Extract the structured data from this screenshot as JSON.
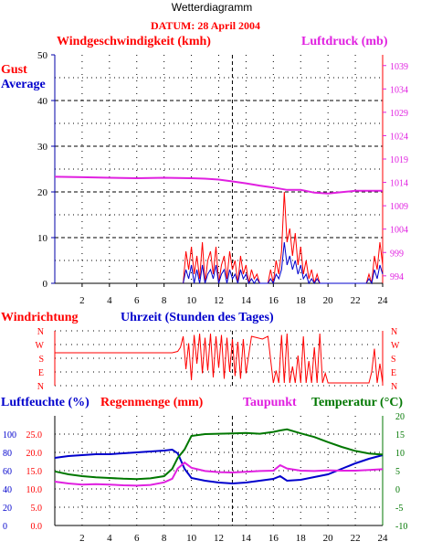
{
  "window_title": "Wetterdiagramm",
  "date_label": "DATUM: 28 April 2004",
  "colors": {
    "red": "#ff0000",
    "blue": "#0000cc",
    "magenta": "#e020e0",
    "green": "#007700",
    "frame": "#0000aa",
    "black": "#000000"
  },
  "chart_data": [
    {
      "type": "line",
      "title": "",
      "left_title": "Windgeschwindigkeit (kmh)",
      "right_title": "Luftdruck (mb)",
      "xlabel": "",
      "x_ticks": [
        2,
        4,
        6,
        8,
        10,
        12,
        14,
        16,
        18,
        20,
        22,
        24
      ],
      "xlim": [
        0,
        24
      ],
      "ylim": [
        0,
        50
      ],
      "y_ticks": [
        0,
        10,
        20,
        30,
        40,
        50
      ],
      "y2lim": [
        992.4,
        1041.3
      ],
      "y2_ticks": [
        994,
        999,
        1004,
        1009,
        1014,
        1019,
        1024,
        1029,
        1034,
        1039
      ],
      "grid": true,
      "series": [
        {
          "name": "Gust",
          "color": "#ff0000",
          "axis": "left",
          "x": [
            9.4,
            9.6,
            9.8,
            10.0,
            10.2,
            10.4,
            10.6,
            10.8,
            11.0,
            11.2,
            11.4,
            11.6,
            11.8,
            12.0,
            12.2,
            12.4,
            12.6,
            12.8,
            13.0,
            13.2,
            13.4,
            13.6,
            13.8,
            14.0,
            14.2,
            14.4,
            14.6,
            14.8,
            15.0,
            15.2,
            15.4,
            15.6,
            15.8,
            16.0,
            16.2,
            16.4,
            16.6,
            16.8,
            17.0,
            17.2,
            17.4,
            17.6,
            17.8,
            18.0,
            18.2,
            18.4,
            18.6,
            18.8,
            19.0,
            19.2,
            19.4,
            19.6,
            19.8,
            20.0,
            20.2,
            20.4,
            20.6,
            20.8,
            21.0,
            21.2,
            21.4,
            21.6,
            21.8,
            22.0,
            22.2,
            22.4,
            22.6,
            22.8,
            23.0,
            23.2,
            23.4,
            23.6,
            23.8,
            24.0
          ],
          "y": [
            0,
            7,
            3,
            8,
            2,
            6,
            1,
            9,
            0,
            5,
            7,
            2,
            8,
            0,
            4,
            6,
            1,
            7,
            3,
            5,
            0,
            6,
            2,
            4,
            0,
            3,
            1,
            2,
            0,
            0,
            0,
            0,
            3,
            0,
            5,
            2,
            7,
            20,
            9,
            12,
            6,
            11,
            4,
            8,
            2,
            5,
            1,
            3,
            0,
            2,
            0,
            0,
            0,
            0,
            0,
            0,
            0,
            0,
            0,
            0,
            0,
            0,
            0,
            0,
            0,
            0,
            0,
            0,
            2,
            0,
            6,
            3,
            9,
            4
          ]
        },
        {
          "name": "Average",
          "color": "#0000cc",
          "axis": "left",
          "x": [
            9.4,
            9.6,
            9.8,
            10.0,
            10.2,
            10.4,
            10.6,
            10.8,
            11.0,
            11.2,
            11.4,
            11.6,
            11.8,
            12.0,
            12.2,
            12.4,
            12.6,
            12.8,
            13.0,
            13.2,
            13.4,
            13.6,
            13.8,
            14.0,
            14.2,
            14.4,
            14.6,
            14.8,
            15.0,
            15.2,
            15.4,
            15.6,
            15.8,
            16.0,
            16.2,
            16.4,
            16.6,
            16.8,
            17.0,
            17.2,
            17.4,
            17.6,
            17.8,
            18.0,
            18.2,
            18.4,
            18.6,
            18.8,
            19.0,
            19.2,
            19.4,
            19.6,
            19.8,
            20.0,
            20.2,
            20.4,
            20.6,
            20.8,
            21.0,
            21.2,
            21.4,
            21.6,
            21.8,
            22.0,
            22.2,
            22.4,
            22.6,
            22.8,
            23.0,
            23.2,
            23.4,
            23.6,
            23.8,
            24.0
          ],
          "y": [
            0,
            3,
            1,
            4,
            0,
            3,
            0,
            4,
            0,
            2,
            3,
            1,
            4,
            0,
            2,
            3,
            0,
            3,
            1,
            2,
            0,
            3,
            1,
            2,
            0,
            1,
            0,
            1,
            0,
            0,
            0,
            0,
            1,
            0,
            2,
            1,
            3,
            9,
            4,
            6,
            3,
            5,
            2,
            4,
            1,
            2,
            0,
            1,
            0,
            1,
            0,
            0,
            0,
            0,
            0,
            0,
            0,
            0,
            0,
            0,
            0,
            0,
            0,
            0,
            0,
            0,
            0,
            0,
            1,
            0,
            3,
            1,
            4,
            2
          ]
        },
        {
          "name": "Luftdruck",
          "color": "#e020e0",
          "axis": "right",
          "x": [
            0,
            2,
            4,
            6,
            8,
            10,
            11,
            12,
            13,
            14,
            15,
            16,
            17,
            18,
            19,
            20,
            21,
            22,
            23,
            24
          ],
          "y": [
            1015.2,
            1015.1,
            1015.0,
            1014.9,
            1015.0,
            1014.9,
            1014.8,
            1014.6,
            1014.2,
            1013.8,
            1013.3,
            1012.9,
            1012.4,
            1012.4,
            1011.8,
            1011.6,
            1011.9,
            1012.2,
            1012.2,
            1012.2
          ]
        }
      ],
      "legend": [
        "Gust",
        "Average"
      ]
    },
    {
      "type": "line",
      "title": "Uhrzeit (Stunden des Tages)",
      "left_title": "Windrichtung",
      "categories": [
        "N",
        "W",
        "S",
        "E",
        "N"
      ],
      "xlim": [
        0,
        24
      ],
      "grid": true,
      "series": [
        {
          "name": "Windrichtung",
          "color": "#ff0000",
          "x": [
            0,
            2,
            4,
            6,
            8,
            8.6,
            9.0,
            9.2,
            9.4,
            9.6,
            9.8,
            10.0,
            10.2,
            10.4,
            10.6,
            10.8,
            11.0,
            11.2,
            11.4,
            11.6,
            11.8,
            12.0,
            12.2,
            12.4,
            12.6,
            12.8,
            13.0,
            13.2,
            13.4,
            13.6,
            13.8,
            14.0,
            14.4,
            14.8,
            15.2,
            15.6,
            16.0,
            16.2,
            16.4,
            16.6,
            16.8,
            17.0,
            17.2,
            17.4,
            17.6,
            17.8,
            18.0,
            18.2,
            18.4,
            18.6,
            18.8,
            19.0,
            19.2,
            19.4,
            19.6,
            19.8,
            20.0,
            20.5,
            21.0,
            21.5,
            22.0,
            22.5,
            23.0,
            23.2,
            23.4,
            23.6,
            23.8,
            24.0
          ],
          "y": [
            1.6,
            1.6,
            1.6,
            1.6,
            1.6,
            1.6,
            1.5,
            1.2,
            0.4,
            2.8,
            0.9,
            3.6,
            0.3,
            2.4,
            0.2,
            3.1,
            0.5,
            2.9,
            0.2,
            3.4,
            0.4,
            2.7,
            0.3,
            3.5,
            0.5,
            3.0,
            0.6,
            3.3,
            0.8,
            3.5,
            0.6,
            3.1,
            0.4,
            0.5,
            0.6,
            0.4,
            3.8,
            2.9,
            3.8,
            0.3,
            3.8,
            0.2,
            3.8,
            2.6,
            3.8,
            1.8,
            3.8,
            0.4,
            3.8,
            2.2,
            3.8,
            1.2,
            3.8,
            0.2,
            3.8,
            3.1,
            3.8,
            3.8,
            3.8,
            3.8,
            3.8,
            3.8,
            3.8,
            3.0,
            1.3,
            3.8,
            2.4,
            3.8
          ]
        }
      ]
    },
    {
      "type": "line",
      "title": "",
      "labels": {
        "humidity": "Luftfeuchte (%)",
        "rain": "Regenmenge (mm)",
        "dewpoint": "Taupunkt",
        "temperature": "Temperatur (°C)"
      },
      "xlim": [
        0,
        24
      ],
      "x_ticks": [
        2,
        4,
        6,
        8,
        10,
        12,
        14,
        16,
        18,
        20,
        22,
        24
      ],
      "left_axis_humidity": [
        0,
        20,
        40,
        60,
        80,
        100
      ],
      "left_axis_rain": [
        "0.0",
        "5.0",
        "10.0",
        "15.0",
        "20.0",
        "25.0"
      ],
      "right_axis_temperature": [
        -10,
        -5,
        0,
        5,
        10,
        15,
        20
      ],
      "grid": true,
      "series": [
        {
          "name": "Luftfeuchte",
          "color": "#0000cc",
          "axis": "humidity",
          "x": [
            0,
            1,
            2,
            3,
            4,
            5,
            6,
            7,
            8,
            8.6,
            9.0,
            9.5,
            10,
            11,
            12,
            13,
            14,
            15,
            16,
            16.5,
            17,
            18,
            19,
            20,
            21,
            22,
            23,
            24
          ],
          "y": [
            74,
            76,
            77,
            78,
            78,
            79,
            80,
            81,
            82,
            83,
            79,
            62,
            52,
            49,
            47,
            46,
            47,
            49,
            51,
            54,
            49,
            50,
            53,
            56,
            62,
            68,
            73,
            77
          ]
        },
        {
          "name": "Taupunkt",
          "color": "#e020e0",
          "axis": "temperature",
          "x": [
            0,
            1,
            2,
            3,
            4,
            5,
            6,
            7,
            8,
            8.6,
            9.0,
            9.5,
            10,
            11,
            12,
            13,
            14,
            15,
            16,
            16.5,
            17,
            18,
            19,
            20,
            21,
            22,
            23,
            24
          ],
          "y": [
            2.0,
            1.5,
            1.2,
            1.3,
            1.2,
            1.0,
            0.9,
            1.1,
            1.8,
            2.8,
            5.6,
            7.2,
            5.8,
            4.9,
            4.6,
            4.5,
            4.7,
            4.9,
            5.0,
            6.5,
            5.6,
            5.0,
            4.9,
            5.1,
            5.0,
            5.0,
            5.2,
            5.4
          ]
        },
        {
          "name": "Temperatur",
          "color": "#007700",
          "axis": "temperature",
          "x": [
            0,
            1,
            2,
            3,
            4,
            5,
            6,
            7,
            8,
            8.6,
            9.0,
            9.5,
            10,
            11,
            12,
            13,
            14,
            15,
            16,
            16.5,
            17,
            18,
            19,
            20,
            21,
            22,
            23,
            24
          ],
          "y": [
            4.8,
            4.0,
            3.5,
            3.2,
            3.0,
            2.8,
            2.7,
            2.9,
            3.5,
            5.5,
            8.5,
            10.8,
            14.5,
            15.0,
            15.1,
            15.2,
            15.3,
            15.1,
            15.6,
            16.0,
            16.3,
            15.2,
            14.2,
            12.8,
            11.5,
            10.4,
            9.7,
            9.4
          ]
        }
      ]
    }
  ],
  "labels": {
    "gust": "Gust",
    "average": "Average",
    "wind_speed_title": "Windgeschwindigkeit (kmh)",
    "pressure_title": "Luftdruck (mb)",
    "wind_dir_title": "Windrichtung",
    "time_title": "Uhrzeit (Stunden des Tages)",
    "humidity_title": "Luftfeuchte (%)",
    "rain_title": "Regenmenge (mm)",
    "dewpoint_title": "Taupunkt",
    "temp_title": "Temperatur (°C)"
  }
}
